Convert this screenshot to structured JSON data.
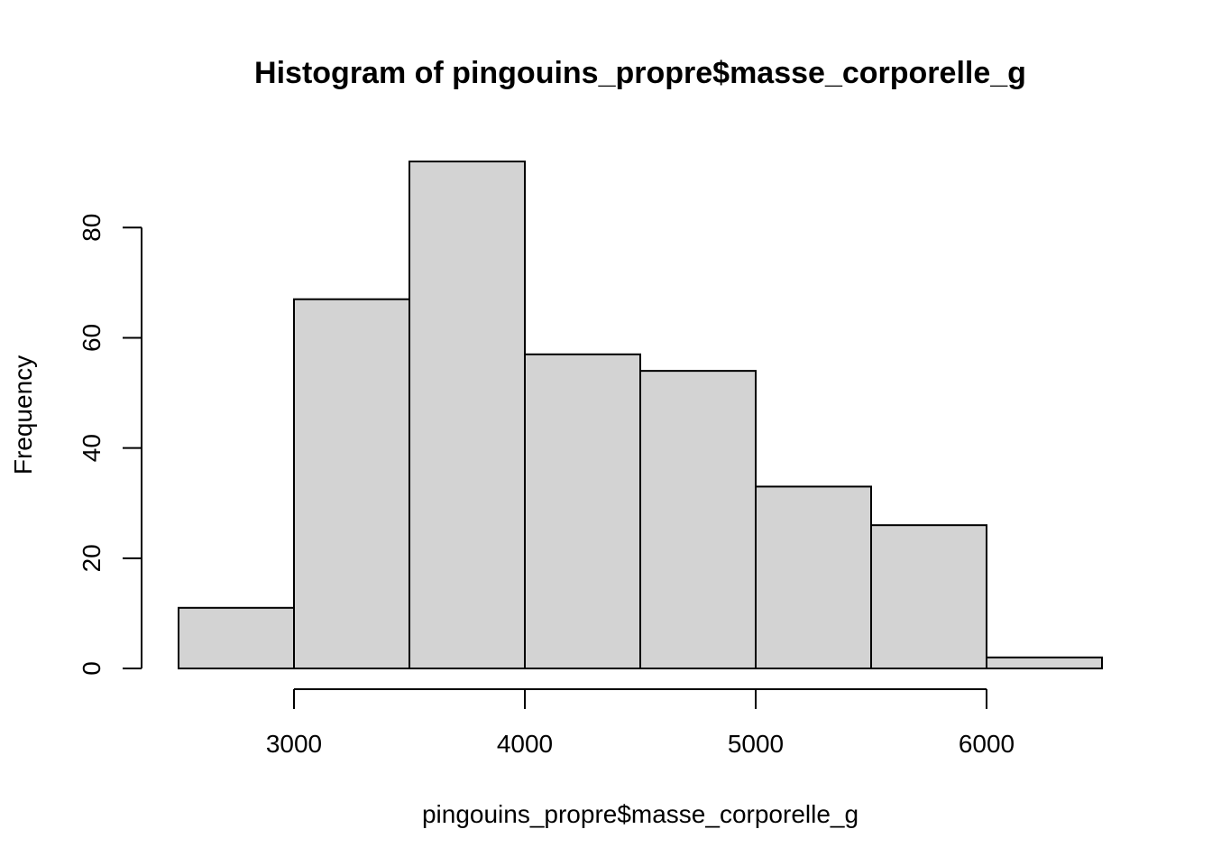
{
  "chart_data": {
    "type": "bar",
    "title": "Histogram of pingouins_propre$masse_corporelle_g",
    "xlabel": "pingouins_propre$masse_corporelle_g",
    "ylabel": "Frequency",
    "bins": [
      {
        "from": 2500,
        "to": 3000,
        "count": 11
      },
      {
        "from": 3000,
        "to": 3500,
        "count": 67
      },
      {
        "from": 3500,
        "to": 4000,
        "count": 92
      },
      {
        "from": 4000,
        "to": 4500,
        "count": 57
      },
      {
        "from": 4500,
        "to": 5000,
        "count": 54
      },
      {
        "from": 5000,
        "to": 5500,
        "count": 33
      },
      {
        "from": 5500,
        "to": 6000,
        "count": 26
      },
      {
        "from": 6000,
        "to": 6500,
        "count": 2
      }
    ],
    "x_ticks": [
      "3000",
      "4000",
      "5000",
      "6000"
    ],
    "y_ticks": [
      "0",
      "20",
      "40",
      "60",
      "80"
    ],
    "xlim": [
      2500,
      6500
    ],
    "ylim": [
      0,
      92
    ],
    "bar_fill": "#d3d3d3",
    "bar_stroke": "#000000",
    "grid": false,
    "legend": "none"
  }
}
